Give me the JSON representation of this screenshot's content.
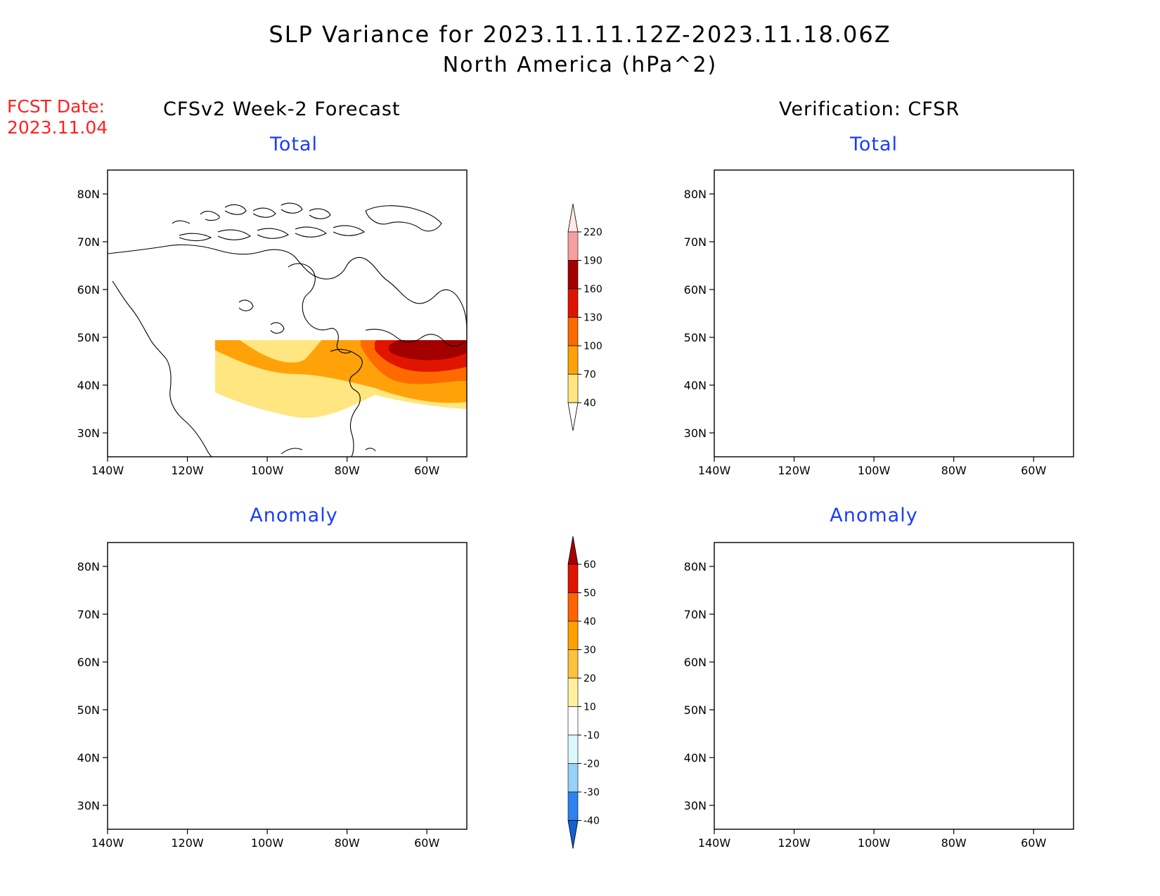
{
  "title_line1": "SLP Variance for 2023.11.11.12Z-2023.11.18.06Z",
  "title_line2": "North America (hPa^2)",
  "fcst_label": "FCST Date:",
  "fcst_date": "2023.11.04",
  "left_column_title": "CFSv2 Week-2 Forecast",
  "right_column_title": "Verification: CFSR",
  "panels": [
    {
      "subtitle": "Total",
      "field": "forecast-total"
    },
    {
      "subtitle": "Total",
      "field": "verification-total"
    },
    {
      "subtitle": "Anomaly",
      "field": "forecast-anomaly"
    },
    {
      "subtitle": "Anomaly",
      "field": "verification-anomaly"
    }
  ],
  "lat_ticks": [
    "80N",
    "70N",
    "60N",
    "50N",
    "40N",
    "30N"
  ],
  "lon_ticks": [
    "140W",
    "120W",
    "100W",
    "80W",
    "60W"
  ],
  "lat_range": [
    25,
    85
  ],
  "lon_range": [
    -140,
    -50
  ],
  "total_colorbar": {
    "levels": [
      40,
      70,
      100,
      130,
      160,
      190,
      220
    ],
    "labels": [
      "40",
      "70",
      "100",
      "130",
      "160",
      "190",
      "220"
    ],
    "colors": [
      "#ffe680",
      "#ffa20a",
      "#ff6a00",
      "#e01500",
      "#a30000",
      "#f5a0a0",
      "#ffe0e0"
    ]
  },
  "anomaly_colorbar": {
    "levels": [
      -40,
      -30,
      -20,
      -10,
      10,
      20,
      30,
      40,
      50,
      60
    ],
    "labels": [
      "-40",
      "-30",
      "-20",
      "-10",
      "10",
      "20",
      "30",
      "40",
      "50",
      "60"
    ],
    "colors": [
      "#1460d2",
      "#2d82f0",
      "#96d2fa",
      "#dcf8ff",
      "#ffffff",
      "#fff0a0",
      "#ffc23c",
      "#ffa000",
      "#ff6400",
      "#e01400",
      "#a50000"
    ]
  }
}
